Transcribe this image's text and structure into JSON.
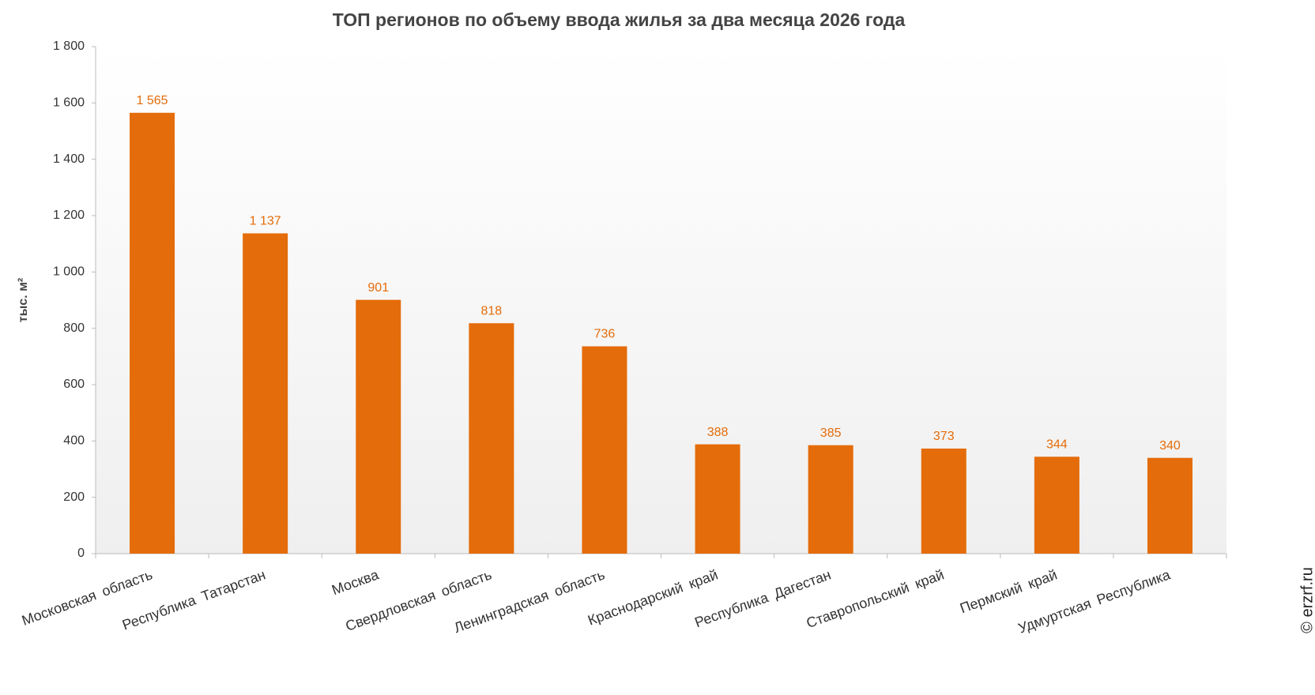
{
  "chart_data": {
    "type": "bar",
    "title": "ТОП регионов по объему ввода жилья за два месяца 2026 года",
    "y_label": "тыс. м²",
    "watermark": "© erzrf.ru",
    "categories": [
      "Московская область",
      "Республика Татарстан",
      "Москва",
      "Свердловская область",
      "Ленинградская область",
      "Краснодарский край",
      "Республика Дагестан",
      "Ставропольский край",
      "Пермский край",
      "Удмуртская Республика"
    ],
    "values": [
      1565,
      1137,
      901,
      818,
      736,
      388,
      385,
      373,
      344,
      340
    ],
    "value_labels": [
      "1 565",
      "1 137",
      "901",
      "818",
      "736",
      "388",
      "385",
      "373",
      "344",
      "340"
    ],
    "color": "#e46c0a",
    "ylim": [
      0,
      1800
    ],
    "yticks": [
      0,
      200,
      400,
      600,
      800,
      {
        "value": 1000,
        "label": "1 000"
      },
      {
        "value": 1200,
        "label": "1 200"
      },
      {
        "value": 1400,
        "label": "1 400"
      },
      {
        "value": 1600,
        "label": "1 600"
      },
      {
        "value": 1800,
        "label": "1 800"
      }
    ],
    "grid": false
  }
}
